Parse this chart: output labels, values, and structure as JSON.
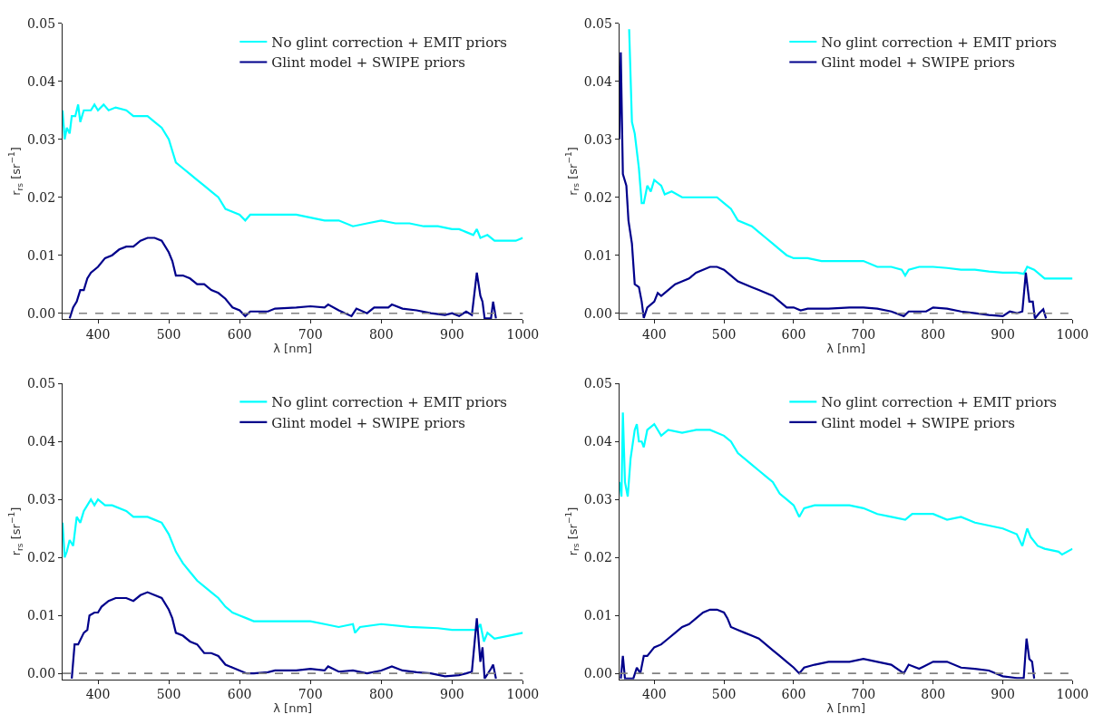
{
  "chart_data": [
    {
      "type": "line",
      "xlabel": "λ [nm]",
      "ylabel": "r$_{rs}$ [sr$^{−1}$]",
      "xlim": [
        350,
        1000
      ],
      "ylim": [
        -0.001,
        0.05
      ],
      "xticks": [
        400,
        500,
        600,
        700,
        800,
        900,
        1000
      ],
      "yticks": [
        {
          "value": 0,
          "label": "0.00"
        },
        {
          "value": 0.01,
          "label": "0.01"
        },
        {
          "value": 0.02,
          "label": "0.02"
        },
        {
          "value": 0.03,
          "label": "0.03"
        },
        {
          "value": 0.04,
          "label": "0.04"
        },
        {
          "value": 0.05,
          "label": "0.05"
        }
      ],
      "legend": "top right",
      "ref_lines": [
        {
          "axis": "y",
          "value": 0,
          "color": "#808080",
          "line_style": "dashed"
        }
      ],
      "series": [
        {
          "name": "No glint correction + EMIT priors",
          "color": "#00ffff",
          "x": [
            350,
            353,
            356,
            360,
            363,
            368,
            372,
            375,
            380,
            390,
            395,
            400,
            408,
            415,
            425,
            440,
            450,
            460,
            470,
            480,
            490,
            500,
            510,
            520,
            530,
            540,
            550,
            560,
            570,
            580,
            590,
            600,
            608,
            615,
            650,
            680,
            700,
            720,
            740,
            760,
            780,
            800,
            820,
            840,
            860,
            880,
            900,
            910,
            920,
            930,
            935,
            940,
            950,
            960,
            970,
            990,
            1000
          ],
          "values": [
            0.035,
            0.03,
            0.032,
            0.031,
            0.034,
            0.034,
            0.036,
            0.033,
            0.035,
            0.035,
            0.036,
            0.035,
            0.036,
            0.035,
            0.0355,
            0.035,
            0.034,
            0.034,
            0.034,
            0.033,
            0.032,
            0.03,
            0.026,
            0.025,
            0.024,
            0.023,
            0.022,
            0.021,
            0.02,
            0.018,
            0.0175,
            0.017,
            0.016,
            0.017,
            0.017,
            0.017,
            0.0165,
            0.016,
            0.016,
            0.015,
            0.0155,
            0.016,
            0.0155,
            0.0155,
            0.015,
            0.015,
            0.0145,
            0.0145,
            0.014,
            0.0135,
            0.0145,
            0.013,
            0.0135,
            0.0125,
            0.0125,
            0.0125,
            0.013
          ]
        },
        {
          "name": "Glint model + SWIPE priors",
          "color": "#00008b",
          "x": [
            360,
            365,
            370,
            375,
            380,
            385,
            390,
            400,
            410,
            420,
            430,
            440,
            450,
            460,
            470,
            480,
            490,
            500,
            505,
            510,
            520,
            530,
            540,
            550,
            560,
            570,
            580,
            590,
            600,
            608,
            615,
            640,
            650,
            680,
            700,
            720,
            725,
            740,
            758,
            765,
            780,
            790,
            810,
            815,
            830,
            850,
            870,
            890,
            900,
            910,
            920,
            928,
            935,
            940,
            943,
            946,
            955,
            958,
            962
          ],
          "values": [
            -0.0009,
            0.001,
            0.002,
            0.004,
            0.004,
            0.006,
            0.007,
            0.008,
            0.0095,
            0.01,
            0.011,
            0.0115,
            0.0115,
            0.0125,
            0.013,
            0.013,
            0.0125,
            0.0105,
            0.009,
            0.0065,
            0.0065,
            0.006,
            0.005,
            0.005,
            0.004,
            0.0035,
            0.0025,
            0.001,
            0.0005,
            -0.0005,
            0.0003,
            0.0003,
            0.0008,
            0.001,
            0.0012,
            0.001,
            0.0015,
            0.0005,
            -0.0005,
            0.0008,
            0,
            0.001,
            0.001,
            0.0015,
            0.0008,
            0.0005,
            0,
            -0.0003,
            0,
            -0.0005,
            0.0003,
            -0.0003,
            0.007,
            0.003,
            0.002,
            -0.0009,
            -0.0009,
            0.002,
            -0.0009
          ]
        }
      ]
    },
    {
      "type": "line",
      "xlabel": "λ [nm]",
      "ylabel": "r$_{rs}$ [sr$^{−1}$]",
      "xlim": [
        350,
        1000
      ],
      "ylim": [
        -0.001,
        0.05
      ],
      "xticks": [
        400,
        500,
        600,
        700,
        800,
        900,
        1000
      ],
      "yticks": [
        {
          "value": 0,
          "label": "0.00"
        },
        {
          "value": 0.01,
          "label": "0.01"
        },
        {
          "value": 0.02,
          "label": "0.02"
        },
        {
          "value": 0.03,
          "label": "0.03"
        },
        {
          "value": 0.04,
          "label": "0.04"
        },
        {
          "value": 0.05,
          "label": "0.05"
        }
      ],
      "legend": "top right",
      "ref_lines": [
        {
          "axis": "y",
          "value": 0,
          "color": "#808080",
          "line_style": "dashed"
        }
      ],
      "series": [
        {
          "name": "No glint correction + EMIT priors",
          "color": "#00ffff",
          "x": [
            364,
            368,
            372,
            378,
            382,
            385,
            390,
            395,
            400,
            405,
            410,
            415,
            425,
            440,
            460,
            480,
            490,
            500,
            510,
            520,
            540,
            550,
            560,
            570,
            580,
            590,
            600,
            620,
            640,
            680,
            700,
            720,
            740,
            755,
            760,
            765,
            780,
            800,
            820,
            840,
            860,
            880,
            900,
            920,
            930,
            935,
            945,
            960,
            980,
            1000
          ],
          "values": [
            0.049,
            0.033,
            0.031,
            0.025,
            0.019,
            0.019,
            0.022,
            0.021,
            0.023,
            0.0225,
            0.022,
            0.0205,
            0.021,
            0.02,
            0.02,
            0.02,
            0.02,
            0.019,
            0.018,
            0.016,
            0.015,
            0.014,
            0.013,
            0.012,
            0.011,
            0.01,
            0.0095,
            0.0095,
            0.009,
            0.009,
            0.009,
            0.008,
            0.008,
            0.0075,
            0.0065,
            0.0075,
            0.008,
            0.008,
            0.0078,
            0.0075,
            0.0075,
            0.0072,
            0.007,
            0.007,
            0.0068,
            0.008,
            0.0075,
            0.006,
            0.006,
            0.006
          ]
        },
        {
          "name": "Glint model + SWIPE priors",
          "color": "#00008b",
          "x": [
            350,
            352,
            355,
            360,
            363,
            368,
            372,
            378,
            382,
            385,
            390,
            400,
            405,
            410,
            420,
            430,
            440,
            450,
            460,
            470,
            480,
            490,
            500,
            510,
            520,
            530,
            540,
            550,
            560,
            570,
            580,
            590,
            600,
            610,
            620,
            650,
            680,
            700,
            720,
            740,
            758,
            765,
            790,
            800,
            820,
            840,
            860,
            880,
            900,
            910,
            920,
            928,
            933,
            938,
            943,
            946,
            952,
            958,
            962
          ],
          "values": [
            0.03,
            0.045,
            0.024,
            0.022,
            0.016,
            0.012,
            0.005,
            0.0045,
            0.002,
            -0.0008,
            0.001,
            0.002,
            0.0035,
            0.003,
            0.004,
            0.005,
            0.0055,
            0.006,
            0.007,
            0.0075,
            0.008,
            0.008,
            0.0075,
            0.0065,
            0.0055,
            0.005,
            0.0045,
            0.004,
            0.0035,
            0.003,
            0.002,
            0.001,
            0.001,
            0.0005,
            0.0008,
            0.0008,
            0.001,
            0.001,
            0.0008,
            0.0003,
            -0.0005,
            0.0003,
            0.0003,
            0.001,
            0.0008,
            0.0003,
            0,
            -0.0003,
            -0.0005,
            0.0003,
            0,
            0.0003,
            0.007,
            0.002,
            0.002,
            -0.0009,
            0,
            0.0007,
            -0.0009
          ]
        }
      ]
    },
    {
      "type": "line",
      "xlabel": "λ [nm]",
      "ylabel": "r$_{rs}$ [sr$^{−1}$]",
      "xlim": [
        350,
        1000
      ],
      "ylim": [
        -0.001,
        0.05
      ],
      "xticks": [
        400,
        500,
        600,
        700,
        800,
        900,
        1000
      ],
      "yticks": [
        {
          "value": 0,
          "label": "0.00"
        },
        {
          "value": 0.01,
          "label": "0.01"
        },
        {
          "value": 0.02,
          "label": "0.02"
        },
        {
          "value": 0.03,
          "label": "0.03"
        },
        {
          "value": 0.04,
          "label": "0.04"
        },
        {
          "value": 0.05,
          "label": "0.05"
        }
      ],
      "legend": "top right",
      "ref_lines": [
        {
          "axis": "y",
          "value": 0,
          "color": "#808080",
          "line_style": "dashed"
        }
      ],
      "series": [
        {
          "name": "No glint correction + EMIT priors",
          "color": "#00ffff",
          "x": [
            350,
            353,
            356,
            360,
            365,
            370,
            375,
            380,
            390,
            395,
            400,
            410,
            420,
            440,
            450,
            470,
            480,
            490,
            500,
            510,
            520,
            530,
            540,
            560,
            570,
            580,
            590,
            600,
            610,
            620,
            660,
            700,
            720,
            740,
            760,
            763,
            770,
            800,
            840,
            880,
            900,
            920,
            935,
            940,
            945,
            950,
            960,
            980,
            1000
          ],
          "values": [
            0.026,
            0.02,
            0.021,
            0.023,
            0.022,
            0.027,
            0.026,
            0.028,
            0.03,
            0.029,
            0.03,
            0.029,
            0.029,
            0.028,
            0.027,
            0.027,
            0.0265,
            0.026,
            0.024,
            0.021,
            0.019,
            0.0175,
            0.016,
            0.014,
            0.013,
            0.0115,
            0.0105,
            0.01,
            0.0095,
            0.009,
            0.009,
            0.009,
            0.0085,
            0.008,
            0.0085,
            0.007,
            0.008,
            0.0085,
            0.008,
            0.0078,
            0.0075,
            0.0075,
            0.0075,
            0.0085,
            0.0055,
            0.007,
            0.006,
            0.0065,
            0.007
          ]
        },
        {
          "name": "Glint model + SWIPE priors",
          "color": "#00008b",
          "x": [
            363,
            367,
            372,
            380,
            385,
            388,
            395,
            400,
            405,
            415,
            425,
            440,
            450,
            460,
            470,
            480,
            490,
            500,
            505,
            510,
            520,
            530,
            540,
            550,
            560,
            570,
            580,
            590,
            600,
            610,
            620,
            640,
            650,
            680,
            700,
            720,
            725,
            740,
            760,
            780,
            800,
            815,
            830,
            850,
            870,
            890,
            910,
            920,
            928,
            935,
            940,
            943,
            946,
            955,
            958,
            962
          ],
          "values": [
            -0.0009,
            0.005,
            0.005,
            0.007,
            0.0075,
            0.01,
            0.0105,
            0.0105,
            0.0115,
            0.0125,
            0.013,
            0.013,
            0.0125,
            0.0135,
            0.014,
            0.0135,
            0.013,
            0.011,
            0.0095,
            0.007,
            0.0065,
            0.0055,
            0.005,
            0.0035,
            0.0035,
            0.003,
            0.0015,
            0.001,
            0.0005,
            0,
            0,
            0.0002,
            0.0005,
            0.0005,
            0.0008,
            0.0005,
            0.0012,
            0.0003,
            0.0005,
            0,
            0.0005,
            0.0012,
            0.0005,
            0.0002,
            0,
            -0.0005,
            -0.0003,
            0,
            0.0003,
            0.0095,
            0.002,
            0.0045,
            -0.0009,
            0.0008,
            0.0015,
            -0.0009
          ]
        }
      ]
    },
    {
      "type": "line",
      "xlabel": "λ [nm]",
      "ylabel": "r$_{rs}$ [sr$^{−1}$]",
      "xlim": [
        350,
        1000
      ],
      "ylim": [
        -0.001,
        0.05
      ],
      "xticks": [
        400,
        500,
        600,
        700,
        800,
        900,
        1000
      ],
      "yticks": [
        {
          "value": 0,
          "label": "0.00"
        },
        {
          "value": 0.01,
          "label": "0.01"
        },
        {
          "value": 0.02,
          "label": "0.02"
        },
        {
          "value": 0.03,
          "label": "0.03"
        },
        {
          "value": 0.04,
          "label": "0.04"
        },
        {
          "value": 0.05,
          "label": "0.05"
        }
      ],
      "legend": "top right",
      "ref_lines": [
        {
          "axis": "y",
          "value": 0,
          "color": "#808080",
          "line_style": "dashed"
        }
      ],
      "series": [
        {
          "name": "No glint correction + EMIT priors",
          "color": "#00ffff",
          "x": [
            350,
            353,
            355,
            358,
            362,
            366,
            372,
            375,
            378,
            382,
            385,
            390,
            400,
            410,
            420,
            440,
            460,
            480,
            500,
            510,
            520,
            540,
            550,
            560,
            570,
            580,
            590,
            600,
            608,
            615,
            630,
            660,
            680,
            700,
            720,
            740,
            760,
            770,
            800,
            820,
            840,
            860,
            880,
            900,
            920,
            928,
            935,
            940,
            950,
            960,
            980,
            985,
            1000
          ],
          "values": [
            0.033,
            0.0305,
            0.045,
            0.033,
            0.0305,
            0.037,
            0.042,
            0.043,
            0.04,
            0.04,
            0.039,
            0.042,
            0.043,
            0.041,
            0.042,
            0.0415,
            0.042,
            0.042,
            0.041,
            0.04,
            0.038,
            0.036,
            0.035,
            0.034,
            0.033,
            0.031,
            0.03,
            0.029,
            0.027,
            0.0285,
            0.029,
            0.029,
            0.029,
            0.0285,
            0.0275,
            0.027,
            0.0265,
            0.0275,
            0.0275,
            0.0265,
            0.027,
            0.026,
            0.0255,
            0.025,
            0.024,
            0.022,
            0.025,
            0.0235,
            0.022,
            0.0215,
            0.021,
            0.0205,
            0.0215
          ]
        },
        {
          "name": "Glint model + SWIPE priors",
          "color": "#00008b",
          "x": [
            352,
            355,
            358,
            370,
            375,
            380,
            385,
            390,
            400,
            410,
            420,
            430,
            440,
            450,
            460,
            470,
            480,
            490,
            500,
            505,
            510,
            520,
            530,
            540,
            550,
            560,
            570,
            580,
            590,
            600,
            608,
            615,
            630,
            650,
            680,
            700,
            720,
            740,
            758,
            765,
            780,
            800,
            820,
            840,
            860,
            880,
            900,
            920,
            930,
            934,
            938,
            942,
            945
          ],
          "values": [
            -0.0009,
            0.003,
            -0.0009,
            -0.0009,
            0.001,
            0,
            0.003,
            0.003,
            0.0045,
            0.005,
            0.006,
            0.007,
            0.008,
            0.0085,
            0.0095,
            0.0105,
            0.011,
            0.011,
            0.0105,
            0.0095,
            0.008,
            0.0075,
            0.007,
            0.0065,
            0.006,
            0.005,
            0.004,
            0.003,
            0.002,
            0.001,
            0,
            0.001,
            0.0015,
            0.002,
            0.002,
            0.0025,
            0.002,
            0.0015,
            0,
            0.0015,
            0.0008,
            0.002,
            0.002,
            0.001,
            0.0008,
            0.0005,
            -0.0005,
            -0.0008,
            -0.0008,
            0.006,
            0.0025,
            0.002,
            -0.0009
          ]
        }
      ]
    }
  ]
}
